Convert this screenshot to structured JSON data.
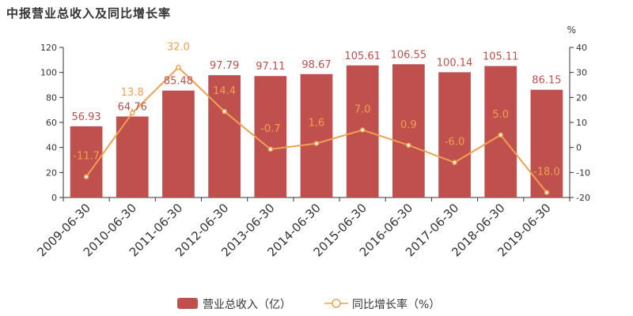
{
  "title": "中报营业总收入及同比增长率",
  "chart_data": {
    "type": "bar",
    "categories": [
      "2009-06-30",
      "2010-06-30",
      "2011-06-30",
      "2012-06-30",
      "2013-06-30",
      "2014-06-30",
      "2015-06-30",
      "2016-06-30",
      "2017-06-30",
      "2018-06-30",
      "2019-06-30"
    ],
    "series": [
      {
        "name": "营业总收入（亿）",
        "type": "bar",
        "axis": "left",
        "color": "#c0504d",
        "values": [
          56.93,
          64.76,
          85.48,
          97.79,
          97.11,
          98.67,
          105.61,
          106.55,
          100.14,
          105.11,
          86.15
        ]
      },
      {
        "name": "同比增长率（%）",
        "type": "line",
        "axis": "right",
        "color": "#f0a050",
        "values": [
          -11.7,
          13.8,
          32.0,
          14.4,
          -0.7,
          1.6,
          7.0,
          0.9,
          -6.0,
          5.0,
          -18.0
        ]
      }
    ],
    "left_axis": {
      "min": 0,
      "max": 120,
      "ticks": [
        0,
        20,
        40,
        60,
        80,
        100,
        120
      ]
    },
    "right_axis": {
      "min": -20,
      "max": 40,
      "ticks": [
        -20,
        -10,
        0,
        10,
        20,
        30,
        40
      ],
      "unit": "%"
    },
    "legend": "bottom-center",
    "grid": false
  }
}
